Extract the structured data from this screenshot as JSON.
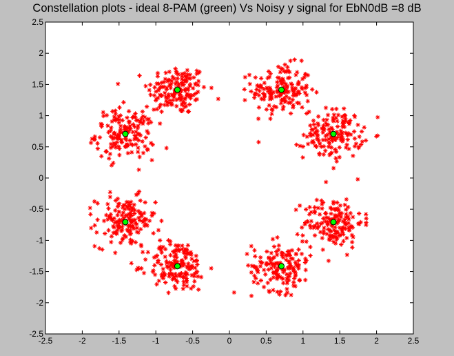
{
  "figure": {
    "background_color": "#c0c0c0"
  },
  "chart_data": {
    "type": "scatter",
    "title": "Constellation plots - ideal 8-PAM (green) Vs Noisy y signal for EbN0dB =8 dB",
    "xlabel": "",
    "ylabel": "",
    "xlim": [
      -2.5,
      2.5
    ],
    "ylim": [
      -2.5,
      2.5
    ],
    "x_ticks": [
      -2.5,
      -2,
      -1.5,
      -1,
      -0.5,
      0,
      0.5,
      1,
      1.5,
      2,
      2.5
    ],
    "x_tick_labels": [
      "-2.5",
      "-2",
      "-1.5",
      "-1",
      "-0.5",
      "0",
      "0.5",
      "1",
      "1.5",
      "2",
      "2.5"
    ],
    "y_ticks": [
      2.5,
      2,
      1.5,
      1,
      0.5,
      0,
      -0.5,
      -1,
      -1.5,
      -2,
      -2.5
    ],
    "y_tick_labels": [
      "2.5",
      "2",
      "1.5",
      "1",
      "0.5",
      "0",
      "-0.5",
      "-1",
      "-1.5",
      "-2",
      "-2.5"
    ],
    "grid": false,
    "legend": "none",
    "series": [
      {
        "marker": "asterisk",
        "color": "#ff0000",
        "points_per_cluster": 160,
        "noise_std": 0.2,
        "cluster_centers": [
          [
            -0.707,
            1.414
          ],
          [
            0.707,
            1.414
          ],
          [
            -1.414,
            0.707
          ],
          [
            1.414,
            0.707
          ],
          [
            -1.414,
            -0.707
          ],
          [
            1.414,
            -0.707
          ],
          [
            -0.707,
            -1.414
          ],
          [
            0.707,
            -1.414
          ]
        ]
      },
      {
        "marker": "circle",
        "color": "#00ff00",
        "edge_color": "#000000",
        "points": [
          [
            -0.707,
            1.414
          ],
          [
            0.707,
            1.414
          ],
          [
            -1.414,
            0.707
          ],
          [
            1.414,
            0.707
          ],
          [
            -1.414,
            -0.707
          ],
          [
            1.414,
            -0.707
          ],
          [
            -0.707,
            -1.414
          ],
          [
            0.707,
            -1.414
          ]
        ]
      }
    ]
  }
}
